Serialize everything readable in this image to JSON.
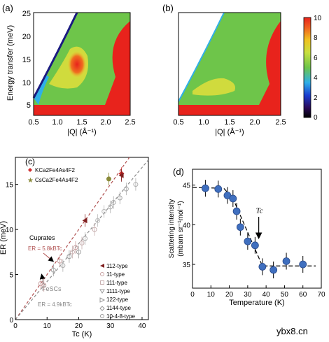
{
  "panels": {
    "a": {
      "label": "(a)",
      "ylabel": "Energy transfer (meV)",
      "xlabel": "|Q| (Å⁻¹)",
      "xticks": [
        "0.5",
        "1.0",
        "1.5",
        "2.0",
        "2.5"
      ],
      "yticks": [
        "5",
        "10",
        "15",
        "20",
        "25"
      ]
    },
    "b": {
      "label": "(b)",
      "xlabel": "|Q| (Å⁻¹)",
      "xticks": [
        "0.5",
        "1.0",
        "1.5",
        "2.0",
        "2.5"
      ],
      "colorbar_ticks": [
        "0",
        "2",
        "4",
        "6",
        "8",
        "10"
      ]
    },
    "c": {
      "label": "(c)",
      "ylabel": "ER (meV)",
      "xlabel": "Tc (K)",
      "xticks": [
        "0",
        "10",
        "20",
        "30",
        "40"
      ],
      "yticks": [
        "0",
        "5",
        "10",
        "15"
      ],
      "legend_top": [
        "KCa2Fe4As4F2",
        "CsCa2Fe4As4F2"
      ],
      "legend_right": [
        "112-type",
        "11-type",
        "111-type",
        "1111-type",
        "122-type",
        "1144-type",
        "10-4-8-type"
      ],
      "annot_cuprates": "Cuprates",
      "annot_cuprates_eq": "ER = 5.8kBTc",
      "annot_fescs": "FeSCs",
      "annot_fescs_eq": "ER = 4.9kBTc"
    },
    "d": {
      "label": "(d)",
      "ylabel_1": "Scattering intensity",
      "ylabel_2": "(mbarn sr⁻¹mol⁻¹)",
      "xlabel": "Temperature (K)",
      "xticks": [
        "0",
        "10",
        "20",
        "30",
        "40",
        "50",
        "60",
        "70"
      ],
      "yticks": [
        "35",
        "40",
        "45"
      ],
      "tc_label": "Tc"
    }
  },
  "chart_data": [
    {
      "type": "heatmap",
      "panel": "a",
      "xlim": [
        0.5,
        2.5
      ],
      "ylim": [
        3,
        25
      ],
      "colorbar": {
        "min": 0,
        "max": 10
      }
    },
    {
      "type": "heatmap",
      "panel": "b",
      "xlim": [
        0.5,
        2.5
      ],
      "ylim": [
        3,
        25
      ],
      "colorbar": {
        "min": 0,
        "max": 10
      }
    },
    {
      "type": "scatter",
      "panel": "c",
      "xlim": [
        0,
        42
      ],
      "ylim": [
        0,
        18
      ],
      "lines": [
        {
          "name": "Cuprates",
          "slope": 0.5,
          "color": "#b05050"
        },
        {
          "name": "FeSCs",
          "slope": 0.422,
          "color": "#8c8c8c"
        }
      ],
      "series": [
        {
          "name": "KCa2Fe4As4F2",
          "color": "#d03030",
          "points": [
            [
              33.5,
              16.2
            ]
          ]
        },
        {
          "name": "CsCa2Fe4As4F2",
          "color": "#8a8a3a",
          "points": [
            [
              29.5,
              15.6
            ]
          ]
        },
        {
          "name": "112-type",
          "color": "#802020",
          "points": [
            [
              22,
              11
            ],
            [
              33.5,
              16
            ]
          ]
        },
        {
          "name": "11-type",
          "color": "#c8a0a0",
          "points": [
            [
              8,
              4
            ],
            [
              14,
              6.5
            ],
            [
              19,
              8
            ],
            [
              9,
              3.8
            ]
          ]
        },
        {
          "name": "111-type",
          "color": "#c8b0b0",
          "points": [
            [
              18,
              7.5
            ],
            [
              21,
              8.5
            ],
            [
              25,
              10
            ]
          ]
        },
        {
          "name": "1111-type",
          "color": "#bbbbbb",
          "points": [
            [
              26,
              11
            ],
            [
              28,
              12
            ]
          ]
        },
        {
          "name": "122-type",
          "color": "#b0b0b0",
          "points": [
            [
              15,
              6
            ],
            [
              22,
              9
            ],
            [
              30,
              12.5
            ],
            [
              38,
              15
            ]
          ]
        },
        {
          "name": "1144-type",
          "color": "#a8a8a8",
          "points": [
            [
              31,
              13
            ],
            [
              33,
              13.5
            ],
            [
              35,
              14.5
            ]
          ]
        },
        {
          "name": "10-4-8-type",
          "color": "#a0a0a0",
          "points": [
            [
              12,
              5.5
            ],
            [
              17,
              7
            ],
            [
              20,
              7.5
            ]
          ]
        }
      ]
    },
    {
      "type": "scatter",
      "panel": "d",
      "xlim": [
        0,
        70
      ],
      "ylim": [
        32,
        47
      ],
      "series": [
        {
          "name": "data",
          "color": "#3f6fbf",
          "points": [
            [
              7,
              44.6
            ],
            [
              14,
              44.5
            ],
            [
              19,
              43.7
            ],
            [
              22,
              43.3
            ],
            [
              24,
              41.7
            ],
            [
              26,
              39.7
            ],
            [
              30,
              37.9
            ],
            [
              34,
              37.4
            ],
            [
              38,
              34.7
            ],
            [
              44,
              34.3
            ],
            [
              51,
              35.4
            ],
            [
              60,
              35
            ]
          ]
        }
      ],
      "fit": [
        [
          0,
          44.7
        ],
        [
          17,
          44.6
        ],
        [
          22,
          43.3
        ],
        [
          38,
          34.8
        ],
        [
          67,
          34.8
        ]
      ],
      "tc_arrow_x": 36
    }
  ],
  "colors": {
    "red": "#e8231c",
    "green": "#6ec54a",
    "yellow": "#e8e03a",
    "blue": "#3ab0e8",
    "navy": "#1a1a80",
    "marker_blue": "#3f6fbf"
  },
  "watermark": "ybx8.cn"
}
